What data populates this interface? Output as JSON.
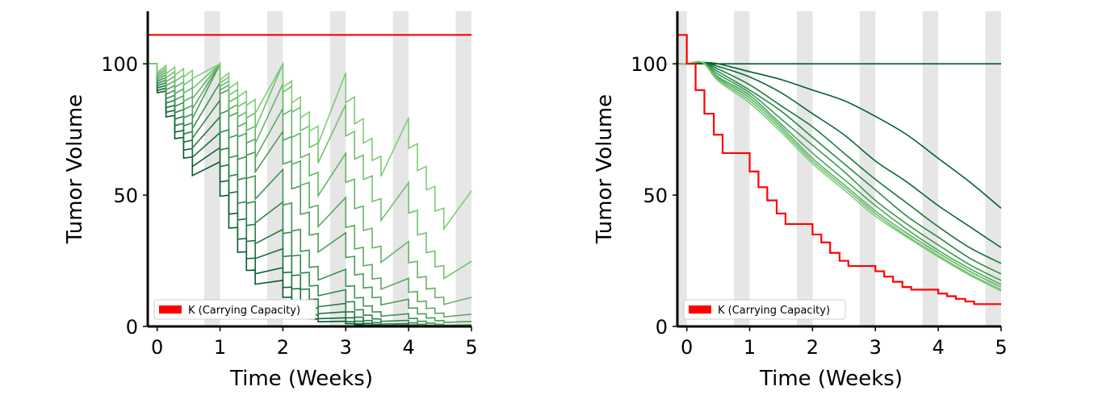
{
  "chart_data": [
    {
      "type": "line",
      "xlabel": "Time (Weeks)",
      "ylabel": "Tumor Volume",
      "xlim": [
        -0.15,
        5
      ],
      "ylim": [
        0,
        120
      ],
      "xticks": [
        0,
        1,
        2,
        3,
        4,
        5
      ],
      "yticks": [
        0,
        50,
        100
      ],
      "treatment_bands": [
        [
          0.75,
          1.0
        ],
        [
          1.75,
          2.0
        ],
        [
          2.75,
          3.0
        ],
        [
          3.75,
          4.0
        ],
        [
          4.75,
          5.0
        ]
      ],
      "band_color": "#e6e6e6",
      "legend": {
        "label": "K (Carrying Capacity)",
        "position": "lower-left",
        "color": "#ff0000"
      },
      "carrying_capacity": {
        "x": [
          -0.15,
          5
        ],
        "y": [
          111,
          111
        ]
      },
      "series_family": {
        "pattern": "sawtooth",
        "count": 11,
        "color_light": "#7fcc78",
        "color_dark": "#005a2b",
        "peak_y_week_start": [
          100,
          100,
          90,
          75,
          55,
          32,
          15
        ],
        "level_after_first_week": [
          [
            100,
            77
          ],
          [
            100,
            79
          ],
          [
            100,
            80
          ],
          [
            100,
            81
          ],
          [
            100,
            82
          ],
          [
            100,
            83
          ],
          [
            100,
            84
          ],
          [
            100,
            85
          ],
          [
            100,
            86
          ],
          [
            100,
            87
          ],
          [
            100,
            88
          ]
        ]
      }
    },
    {
      "type": "line",
      "xlabel": "Time (Weeks)",
      "ylabel": "Tumor Volume",
      "xlim": [
        -0.15,
        5
      ],
      "ylim": [
        0,
        120
      ],
      "xticks": [
        0,
        1,
        2,
        3,
        4,
        5
      ],
      "yticks": [
        0,
        50,
        100
      ],
      "treatment_bands": [
        [
          -0.15,
          0.0
        ],
        [
          0.75,
          1.0
        ],
        [
          1.75,
          2.0
        ],
        [
          2.75,
          3.0
        ],
        [
          3.75,
          4.0
        ],
        [
          4.75,
          5.0
        ]
      ],
      "band_color": "#e6e6e6",
      "legend": {
        "label": "K (Carrying Capacity)",
        "position": "lower-left",
        "color": "#ff0000"
      },
      "carrying_capacity": {
        "x": [
          -0.15,
          0.0,
          0.0,
          0.14,
          0.14,
          0.28,
          0.28,
          0.43,
          0.43,
          0.57,
          0.57,
          1.0,
          1.0,
          1.14,
          1.14,
          1.28,
          1.28,
          1.43,
          1.43,
          1.57,
          1.57,
          2.0,
          2.0,
          2.14,
          2.14,
          2.28,
          2.28,
          2.43,
          2.43,
          2.57,
          2.57,
          3.0,
          3.0,
          3.14,
          3.14,
          3.28,
          3.28,
          3.43,
          3.43,
          3.57,
          3.57,
          4.0,
          4.0,
          4.14,
          4.14,
          4.28,
          4.28,
          4.43,
          4.43,
          4.57,
          4.57,
          5.0
        ],
        "y": [
          111,
          111,
          100,
          100,
          90,
          90,
          81,
          81,
          73,
          73,
          66,
          66,
          59,
          59,
          53,
          53,
          48,
          48,
          43,
          43,
          39,
          39,
          35,
          35,
          32,
          32,
          28,
          28,
          25,
          25,
          23,
          23,
          21,
          21,
          19,
          19,
          17,
          17,
          15,
          15,
          14,
          14,
          12.5,
          12.5,
          11.5,
          11.5,
          10.5,
          10.5,
          9.5,
          9.5,
          8.5,
          8.5
        ]
      },
      "series": [
        {
          "x": [
            -0.15,
            5
          ],
          "y": [
            100,
            100
          ],
          "color": "#005a2b"
        },
        {
          "x": [
            -0.15,
            0,
            0.25,
            0.5,
            1,
            1.5,
            2,
            2.5,
            3,
            3.5,
            4,
            4.5,
            5
          ],
          "y": [
            100,
            100,
            100.5,
            100,
            97,
            94,
            90,
            86,
            80,
            73,
            64,
            55,
            45
          ],
          "color": "#00612f"
        },
        {
          "x": [
            -0.15,
            0,
            0.25,
            0.5,
            1,
            1.5,
            2,
            2.5,
            3,
            3.5,
            4,
            4.5,
            5
          ],
          "y": [
            100,
            100,
            100.5,
            99,
            95,
            89,
            81,
            73,
            63,
            55,
            46,
            38,
            30
          ],
          "color": "#0a6a34"
        },
        {
          "x": [
            -0.15,
            0,
            0.25,
            0.5,
            1,
            1.5,
            2,
            2.5,
            3,
            3.5,
            4,
            4.5,
            5
          ],
          "y": [
            100,
            100,
            100.5,
            98,
            92,
            84,
            76,
            66,
            56,
            47,
            38,
            30,
            24
          ],
          "color": "#1a7a3c"
        },
        {
          "x": [
            -0.15,
            0,
            0.25,
            0.5,
            1,
            1.5,
            2,
            2.5,
            3,
            3.5,
            4,
            4.5,
            5
          ],
          "y": [
            100,
            100,
            100.5,
            97,
            90,
            82,
            72,
            62,
            52,
            42,
            34,
            26,
            20
          ],
          "color": "#2a8a45"
        },
        {
          "x": [
            -0.15,
            0,
            0.25,
            0.5,
            1,
            1.5,
            2,
            2.5,
            3,
            3.5,
            4,
            4.5,
            5
          ],
          "y": [
            100,
            100,
            100.5,
            96,
            89,
            79,
            69,
            59,
            48,
            39,
            31,
            23.5,
            17.5
          ],
          "color": "#3a9a4e"
        },
        {
          "x": [
            -0.15,
            0,
            0.25,
            0.5,
            1,
            1.5,
            2,
            2.5,
            3,
            3.5,
            4,
            4.5,
            5
          ],
          "y": [
            100,
            100,
            100.5,
            95,
            88,
            77,
            66,
            56,
            46,
            37,
            29,
            22,
            16
          ],
          "color": "#4aa858"
        },
        {
          "x": [
            -0.15,
            0,
            0.25,
            0.5,
            1,
            1.5,
            2,
            2.5,
            3,
            3.5,
            4,
            4.5,
            5
          ],
          "y": [
            100,
            100,
            100.5,
            94.5,
            87,
            76,
            64,
            54,
            44,
            35.5,
            28,
            21,
            15
          ],
          "color": "#5ab462"
        },
        {
          "x": [
            -0.15,
            0,
            0.25,
            0.5,
            1,
            1.5,
            2,
            2.5,
            3,
            3.5,
            4,
            4.5,
            5
          ],
          "y": [
            100,
            100,
            100.5,
            94,
            86,
            75,
            63,
            53,
            43,
            34.5,
            27,
            20,
            14
          ],
          "color": "#6cbf6c"
        },
        {
          "x": [
            -0.15,
            0,
            0.25,
            0.5,
            1,
            1.5,
            2,
            2.5,
            3,
            3.5,
            4,
            4.5,
            5
          ],
          "y": [
            100,
            100,
            100.5,
            93.5,
            85,
            74,
            62,
            52,
            42,
            34,
            26.5,
            19.5,
            13.5
          ],
          "color": "#7fcc78"
        }
      ]
    }
  ]
}
